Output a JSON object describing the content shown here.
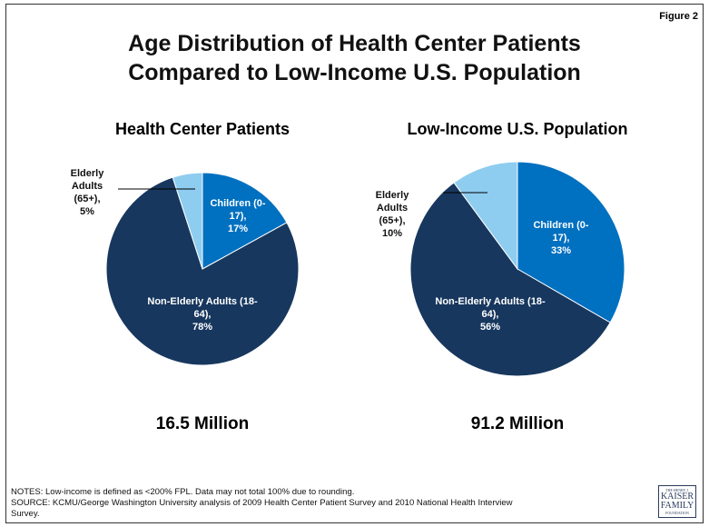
{
  "figure_label": "Figure 2",
  "title": [
    "Age Distribution of Health Center Patients",
    "Compared to Low-Income U.S. Population"
  ],
  "chart_data": [
    {
      "type": "pie",
      "title": "Health Center Patients",
      "categories": [
        "Children (0-17),",
        "Non-Elderly Adults (18-64),",
        "Elderly Adults (65+),"
      ],
      "values": [
        17,
        78,
        5
      ],
      "value_labels": [
        "17%",
        "78%",
        "5%"
      ],
      "colors": [
        "#0070c0",
        "#17375e",
        "#8ecdf0"
      ],
      "total_label": "16.5 Million"
    },
    {
      "type": "pie",
      "title": "Low-Income U.S. Population",
      "categories": [
        "Children (0-17),",
        "Non-Elderly Adults (18-64),",
        "Elderly Adults (65+),"
      ],
      "values": [
        33,
        56,
        10
      ],
      "value_labels": [
        "33%",
        "56%",
        "10%"
      ],
      "colors": [
        "#0070c0",
        "#17375e",
        "#8ecdf0"
      ],
      "total_label": "91.2 Million"
    }
  ],
  "notes": [
    "NOTES: Low-income is defined as <200% FPL. Data may not total 100% due to rounding.",
    "SOURCE: KCMU/George Washington University analysis of 2009 Health Center Patient Survey and 2010 National Health Interview Survey."
  ],
  "logo": [
    "THE HENRY J.",
    "KAISER",
    "FAMILY",
    "FOUNDATION"
  ]
}
